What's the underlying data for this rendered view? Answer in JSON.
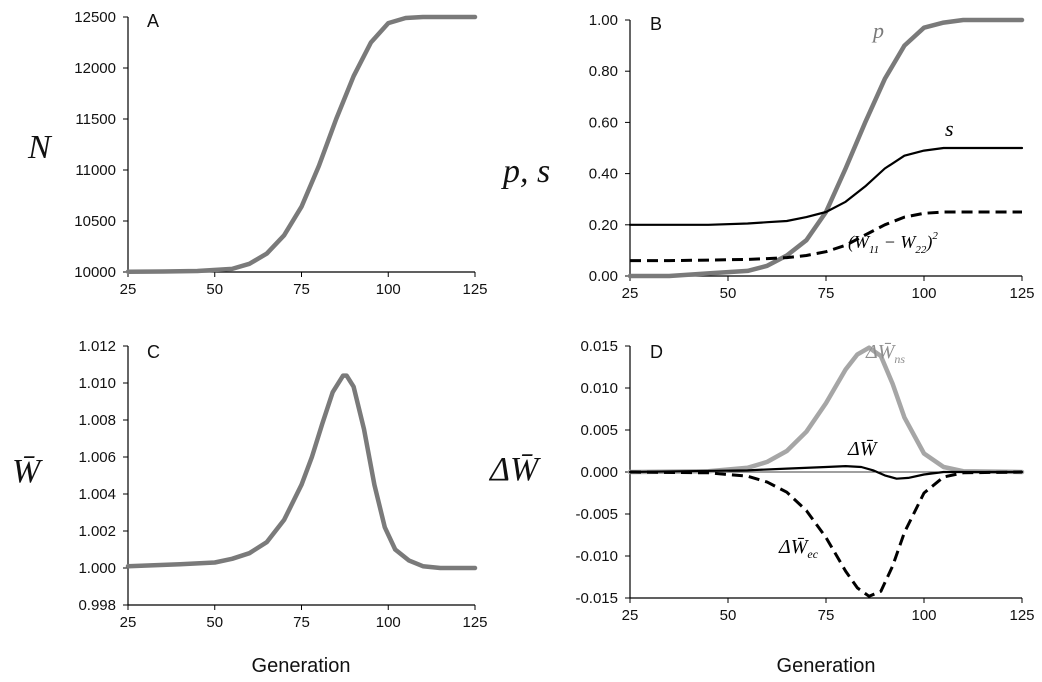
{
  "xlabel": "Generation",
  "chart_data": [
    {
      "panel": "A",
      "type": "line",
      "ylabel": "N",
      "xlim": [
        25,
        125
      ],
      "ylim": [
        10000,
        12500
      ],
      "xticks": [
        "25",
        "50",
        "75",
        "100",
        "125"
      ],
      "yticks": [
        "10000",
        "10500",
        "11000",
        "11500",
        "12000",
        "12500"
      ],
      "series": [
        {
          "color": "#7a7a7a",
          "x": [
            25,
            35,
            45,
            55,
            60,
            65,
            70,
            75,
            80,
            85,
            90,
            95,
            100,
            105,
            110,
            115,
            125
          ],
          "y": [
            10003,
            10005,
            10010,
            10030,
            10080,
            10180,
            10360,
            10640,
            11040,
            11500,
            11920,
            12250,
            12440,
            12490,
            12500,
            12500,
            12500
          ]
        }
      ]
    },
    {
      "panel": "B",
      "type": "line",
      "ylabel": "p, s",
      "xlim": [
        25,
        125
      ],
      "ylim": [
        0,
        1
      ],
      "xticks": [
        "25",
        "50",
        "75",
        "100",
        "125"
      ],
      "yticks": [
        "0.00",
        "0.20",
        "0.40",
        "0.60",
        "0.80",
        "1.00"
      ],
      "annotations": {
        "p": "p",
        "s": "s",
        "w_pre": "(W",
        "w_sub1": "11",
        "w_mid": " − W",
        "w_sub2": "22",
        "w_post": ")",
        "w_sup": "2"
      },
      "series": [
        {
          "name": "p",
          "color": "#7a7a7a",
          "x": [
            25,
            35,
            45,
            55,
            60,
            65,
            70,
            75,
            80,
            85,
            90,
            95,
            100,
            105,
            110,
            115,
            125
          ],
          "y": [
            0.0,
            0.0,
            0.01,
            0.02,
            0.04,
            0.08,
            0.14,
            0.25,
            0.42,
            0.6,
            0.77,
            0.9,
            0.97,
            0.99,
            1.0,
            1.0,
            1.0
          ]
        },
        {
          "name": "s",
          "color": "#000000",
          "x": [
            25,
            35,
            45,
            55,
            60,
            65,
            70,
            75,
            80,
            85,
            90,
            95,
            100,
            105,
            110,
            115,
            125
          ],
          "y": [
            0.2,
            0.2,
            0.2,
            0.205,
            0.21,
            0.215,
            0.23,
            0.25,
            0.29,
            0.35,
            0.42,
            0.47,
            0.49,
            0.5,
            0.5,
            0.5,
            0.5
          ]
        },
        {
          "name": "(W11 − W22)^2",
          "color": "#000000",
          "dash": true,
          "x": [
            25,
            35,
            45,
            55,
            60,
            65,
            70,
            75,
            80,
            85,
            90,
            95,
            100,
            105,
            110,
            115,
            125
          ],
          "y": [
            0.06,
            0.06,
            0.062,
            0.065,
            0.068,
            0.072,
            0.08,
            0.095,
            0.12,
            0.16,
            0.2,
            0.23,
            0.245,
            0.25,
            0.25,
            0.25,
            0.25
          ]
        }
      ]
    },
    {
      "panel": "C",
      "type": "line",
      "ylabel": "W̄",
      "xlim": [
        25,
        125
      ],
      "ylim": [
        0.998,
        1.012
      ],
      "xticks": [
        "25",
        "50",
        "75",
        "100",
        "125"
      ],
      "yticks": [
        "0.998",
        "1.000",
        "1.002",
        "1.004",
        "1.006",
        "1.008",
        "1.010",
        "1.012"
      ],
      "series": [
        {
          "color": "#7a7a7a",
          "x": [
            25,
            40,
            50,
            55,
            60,
            65,
            70,
            75,
            78,
            81,
            84,
            87,
            88,
            90,
            93,
            96,
            99,
            102,
            106,
            110,
            115,
            125
          ],
          "y": [
            1.0001,
            1.0002,
            1.0003,
            1.0005,
            1.0008,
            1.0014,
            1.0026,
            1.0045,
            1.006,
            1.0078,
            1.0095,
            1.0104,
            1.0104,
            1.0098,
            1.0075,
            1.0045,
            1.0022,
            1.001,
            1.0004,
            1.0001,
            1.0,
            1.0
          ]
        }
      ]
    },
    {
      "panel": "D",
      "type": "line",
      "ylabel": "ΔW̄",
      "xlim": [
        25,
        125
      ],
      "ylim": [
        -0.015,
        0.015
      ],
      "xticks": [
        "25",
        "50",
        "75",
        "100",
        "125"
      ],
      "yticks": [
        "-0.015",
        "-0.010",
        "-0.005",
        "0.000",
        "0.005",
        "0.010",
        "0.015"
      ],
      "annotations": {
        "delta": "Δ",
        "wbar": "W̄",
        "ns": "ns",
        "ec": "ec"
      },
      "series": [
        {
          "name": "ΔW̄ns",
          "color": "#a6a6a6",
          "x": [
            25,
            45,
            55,
            60,
            65,
            70,
            75,
            80,
            83,
            86,
            89,
            92,
            95,
            100,
            105,
            110,
            125
          ],
          "y": [
            0.0,
            0.0001,
            0.0005,
            0.0012,
            0.0025,
            0.0048,
            0.0082,
            0.0122,
            0.014,
            0.0148,
            0.0138,
            0.0105,
            0.0065,
            0.0022,
            0.0006,
            0.0001,
            0.0
          ]
        },
        {
          "name": "ΔW̄",
          "color": "#000000",
          "x": [
            25,
            55,
            65,
            75,
            80,
            84,
            87,
            90,
            93,
            96,
            100,
            105,
            125
          ],
          "y": [
            0.0,
            0.0002,
            0.0004,
            0.0006,
            0.0007,
            0.0006,
            0.0002,
            -0.0004,
            -0.0008,
            -0.0007,
            -0.0003,
            0.0,
            0.0
          ]
        },
        {
          "name": "ΔW̄ec",
          "color": "#000000",
          "dash": true,
          "x": [
            25,
            45,
            55,
            60,
            65,
            70,
            75,
            80,
            83,
            86,
            89,
            92,
            95,
            100,
            105,
            110,
            125
          ],
          "y": [
            0.0,
            -0.0001,
            -0.0005,
            -0.0012,
            -0.0024,
            -0.0046,
            -0.0078,
            -0.0118,
            -0.0138,
            -0.0148,
            -0.0142,
            -0.0112,
            -0.0072,
            -0.0025,
            -0.0006,
            -0.0001,
            0.0
          ]
        }
      ]
    }
  ]
}
